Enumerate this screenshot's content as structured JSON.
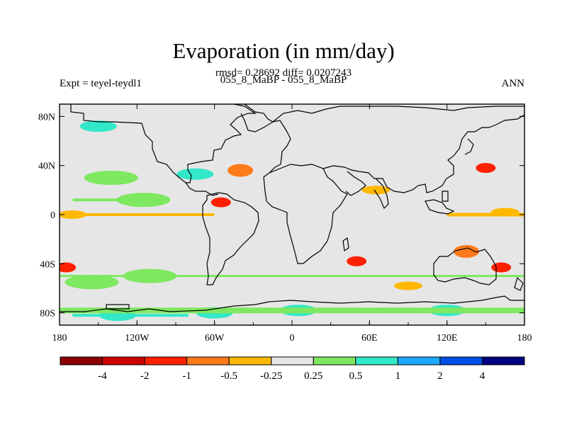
{
  "chart_data": {
    "type": "heatmap",
    "title": "Evaporation (in mm/day)",
    "subtitle_line1": "rmsd= 0.28692 diff= 0.0207243",
    "subtitle_line2": "055_8_MaBP - 055_8_MaBP",
    "left_label": "Expt = teyel-teydl1",
    "right_label": "ANN",
    "x_ticks": [
      "180",
      "120W",
      "60W",
      "0",
      "60E",
      "120E",
      "180"
    ],
    "y_ticks": [
      "80N",
      "40N",
      "0",
      "40S",
      "80S"
    ],
    "xlim": [
      -180,
      180
    ],
    "ylim": [
      -90,
      90
    ],
    "colorbar": {
      "levels": [
        "-4",
        "-2",
        "-1",
        "-0.5",
        "-0.25",
        "0.25",
        "0.5",
        "1",
        "2",
        "4"
      ],
      "colors": [
        "#8b0000",
        "#cd0000",
        "#ff2000",
        "#ff7a1a",
        "#ffb800",
        "#e6e6e6",
        "#7ee860",
        "#33e8c8",
        "#1ea8ff",
        "#0050e6",
        "#000080"
      ]
    },
    "anomalies": [
      {
        "lon": -140,
        "lat": 30,
        "value": "0.25-0.5"
      },
      {
        "lon": -115,
        "lat": 12,
        "value": "0.25-0.5"
      },
      {
        "lon": -155,
        "lat": -55,
        "value": "0.25-0.5"
      },
      {
        "lon": -110,
        "lat": -50,
        "value": "0.25-0.5"
      },
      {
        "lon": -135,
        "lat": -82,
        "value": "0.5-1"
      },
      {
        "lon": -60,
        "lat": -80,
        "value": "0.5-1"
      },
      {
        "lon": 5,
        "lat": -78,
        "value": "0.5-1"
      },
      {
        "lon": 120,
        "lat": -78,
        "value": "0.5-1"
      },
      {
        "lon": -75,
        "lat": 33,
        "value": "0.5-1"
      },
      {
        "lon": -150,
        "lat": 72,
        "value": "0.5-1"
      },
      {
        "lon": -40,
        "lat": 36,
        "value": "-0.5--1"
      },
      {
        "lon": -55,
        "lat": 10,
        "value": "-1--2"
      },
      {
        "lon": -170,
        "lat": 0,
        "value": "-0.25--0.5"
      },
      {
        "lon": 150,
        "lat": 38,
        "value": "-1--2"
      },
      {
        "lon": 50,
        "lat": -38,
        "value": "-1--2"
      },
      {
        "lon": 135,
        "lat": -30,
        "value": "-0.5--1"
      },
      {
        "lon": 162,
        "lat": -43,
        "value": "-1--2"
      },
      {
        "lon": 165,
        "lat": 2,
        "value": "-0.25--0.5"
      },
      {
        "lon": 90,
        "lat": -58,
        "value": "-0.25--0.5"
      },
      {
        "lon": 65,
        "lat": 20,
        "value": "-0.25--0.5"
      },
      {
        "lon": -175,
        "lat": -43,
        "value": "-1--2"
      }
    ]
  }
}
